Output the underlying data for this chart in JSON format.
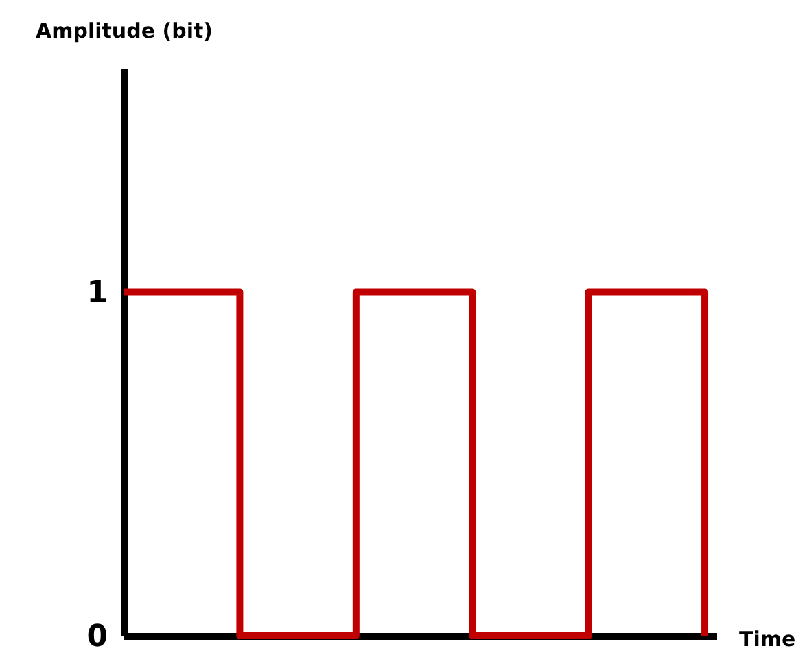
{
  "chart_data": {
    "type": "step",
    "xlabel": "Time",
    "ylabel": "Amplitude (bit)",
    "categories": [
      null,
      null,
      null,
      null,
      null,
      null
    ],
    "series": [
      {
        "color": "#c00000",
        "values": [
          1,
          0,
          1,
          0,
          1,
          0
        ]
      }
    ],
    "ylim": [
      0,
      1.65
    ],
    "yticks": [
      0,
      1
    ],
    "grid": false,
    "line_style": "solid",
    "marker": "none"
  }
}
